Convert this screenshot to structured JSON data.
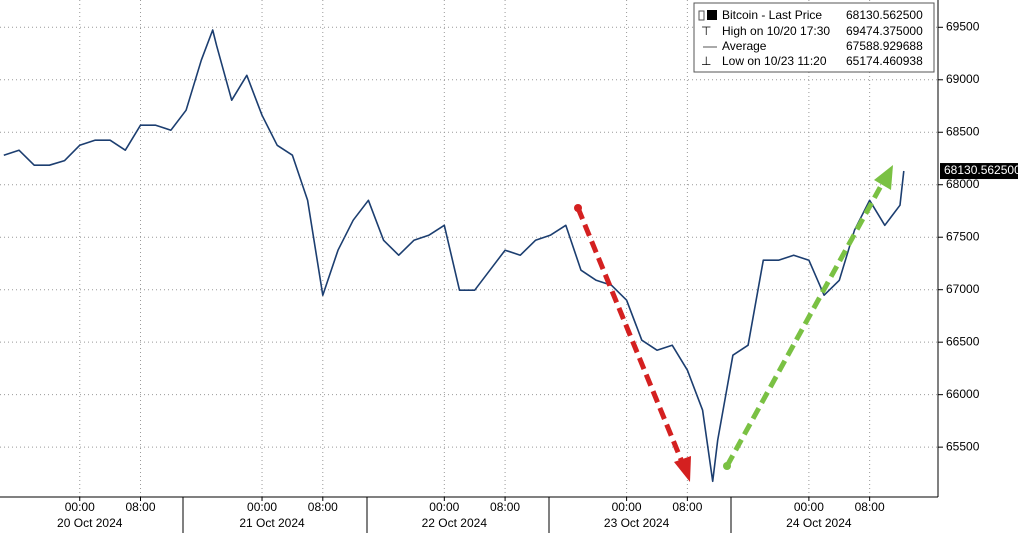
{
  "chart_data": {
    "type": "line",
    "x": [
      "19 Oct 2024 14:00",
      "19 Oct 2024 16:00",
      "19 Oct 2024 18:00",
      "19 Oct 2024 20:00",
      "19 Oct 2024 22:00",
      "20 Oct 2024 00:00",
      "20 Oct 2024 02:00",
      "20 Oct 2024 04:00",
      "20 Oct 2024 06:00",
      "20 Oct 2024 08:00",
      "20 Oct 2024 10:00",
      "20 Oct 2024 12:00",
      "20 Oct 2024 14:00",
      "20 Oct 2024 16:00",
      "20 Oct 2024 17:30",
      "20 Oct 2024 18:00",
      "20 Oct 2024 20:00",
      "20 Oct 2024 22:00",
      "21 Oct 2024 00:00",
      "21 Oct 2024 02:00",
      "21 Oct 2024 04:00",
      "21 Oct 2024 06:00",
      "21 Oct 2024 08:00",
      "21 Oct 2024 10:00",
      "21 Oct 2024 12:00",
      "21 Oct 2024 14:00",
      "21 Oct 2024 16:00",
      "21 Oct 2024 18:00",
      "21 Oct 2024 20:00",
      "21 Oct 2024 22:00",
      "22 Oct 2024 00:00",
      "22 Oct 2024 02:00",
      "22 Oct 2024 04:00",
      "22 Oct 2024 06:00",
      "22 Oct 2024 08:00",
      "22 Oct 2024 10:00",
      "22 Oct 2024 12:00",
      "22 Oct 2024 14:00",
      "22 Oct 2024 16:00",
      "22 Oct 2024 18:00",
      "22 Oct 2024 20:00",
      "22 Oct 2024 22:00",
      "23 Oct 2024 00:00",
      "23 Oct 2024 02:00",
      "23 Oct 2024 04:00",
      "23 Oct 2024 06:00",
      "23 Oct 2024 08:00",
      "23 Oct 2024 10:00",
      "23 Oct 2024 11:20",
      "23 Oct 2024 12:00",
      "23 Oct 2024 14:00",
      "23 Oct 2024 16:00",
      "23 Oct 2024 18:00",
      "23 Oct 2024 20:00",
      "23 Oct 2024 22:00",
      "24 Oct 2024 00:00",
      "24 Oct 2024 02:00",
      "24 Oct 2024 04:00",
      "24 Oct 2024 06:00",
      "24 Oct 2024 08:00",
      "24 Oct 2024 10:00",
      "24 Oct 2024 12:00",
      "24 Oct 2024 12:30"
    ],
    "series": [
      {
        "name": "Bitcoin - Last Price",
        "color": "#1c3e70",
        "values": [
          68281,
          68329,
          68186,
          68186,
          68230,
          68376,
          68424,
          68424,
          68329,
          68567,
          68567,
          68520,
          68710,
          69186,
          69474.375,
          69329,
          68805,
          69043,
          68662,
          68376,
          68281,
          67852,
          66948,
          67376,
          67662,
          67852,
          67471,
          67329,
          67471,
          67520,
          67614,
          66995,
          66995,
          67186,
          67376,
          67329,
          67471,
          67520,
          67614,
          67186,
          67090,
          67043,
          66900,
          66519,
          66424,
          66471,
          66233,
          65852,
          65174.460938,
          65567,
          66376,
          66471,
          67281,
          67281,
          67329,
          67281,
          66948,
          67090,
          67567,
          67852,
          67614,
          67805,
          68130.5625
        ]
      }
    ],
    "xlim": [
      "19 Oct 2024 13:30",
      "24 Oct 2024 17:00"
    ],
    "xticks": [
      {
        "value": "20 Oct 2024 00:00",
        "label": "00:00"
      },
      {
        "value": "20 Oct 2024 08:00",
        "label": "08:00"
      },
      {
        "value": "21 Oct 2024 00:00",
        "label": "00:00"
      },
      {
        "value": "21 Oct 2024 08:00",
        "label": "08:00"
      },
      {
        "value": "22 Oct 2024 00:00",
        "label": "00:00"
      },
      {
        "value": "22 Oct 2024 08:00",
        "label": "08:00"
      },
      {
        "value": "23 Oct 2024 00:00",
        "label": "00:00"
      },
      {
        "value": "23 Oct 2024 08:00",
        "label": "08:00"
      },
      {
        "value": "24 Oct 2024 00:00",
        "label": "00:00"
      },
      {
        "value": "24 Oct 2024 08:00",
        "label": "08:00"
      }
    ],
    "date_labels": [
      "20 Oct 2024",
      "21 Oct 2024",
      "22 Oct 2024",
      "23 Oct 2024",
      "24 Oct 2024"
    ],
    "ylim": [
      65025,
      69760
    ],
    "yticks": [
      65500,
      66000,
      66500,
      67000,
      67500,
      68000,
      68500,
      69000,
      69500
    ],
    "grid": true,
    "legend": "top-right",
    "last_value_label": "68130.562500",
    "stats": [
      {
        "label": "High on 10/20 17:30",
        "value": 69474.375,
        "value_label": "69474.375000"
      },
      {
        "label": "Average",
        "value": 67588.929688,
        "value_label": "67588.929688"
      },
      {
        "label": "Low on 10/23 11:20",
        "value": 65174.460938,
        "value_label": "65174.460938"
      }
    ]
  }
}
